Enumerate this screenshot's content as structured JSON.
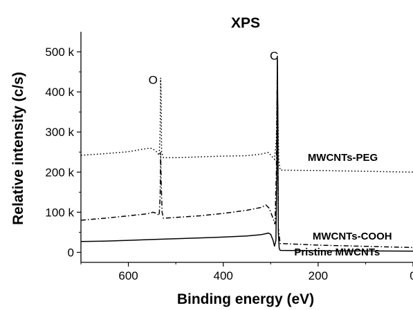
{
  "chart_data": {
    "type": "line",
    "title": "XPS",
    "xlabel": "Binding energy (eV)",
    "ylabel": "Relative intensity (c/s)",
    "xlim": [
      700,
      0
    ],
    "ylim": [
      -25000,
      550000
    ],
    "x_reversed": true,
    "x_ticks": [
      {
        "value": 600,
        "label": "600"
      },
      {
        "value": 400,
        "label": "400"
      },
      {
        "value": 200,
        "label": "200"
      },
      {
        "value": 0,
        "label": "0"
      }
    ],
    "y_ticks": [
      {
        "value": 0,
        "label": "0"
      },
      {
        "value": 100000,
        "label": "100 k"
      },
      {
        "value": 200000,
        "label": "200 k"
      },
      {
        "value": 300000,
        "label": "300 k"
      },
      {
        "value": 400000,
        "label": "400 k"
      },
      {
        "value": 500000,
        "label": "500 k"
      }
    ],
    "grid": false,
    "annotations": [
      {
        "text": "O",
        "x": 548,
        "y": 420000
      },
      {
        "text": "C",
        "x": 293,
        "y": 480000
      }
    ],
    "series": [
      {
        "name": "MWCNTs-PEG",
        "style": "dotted",
        "label_at": {
          "x": 148,
          "y": 228000
        },
        "points": [
          [
            700,
            242000
          ],
          [
            650,
            246000
          ],
          [
            600,
            251000
          ],
          [
            570,
            257000
          ],
          [
            555,
            260000
          ],
          [
            548,
            258000
          ],
          [
            540,
            250000
          ],
          [
            535,
            242000
          ],
          [
            533,
            300000
          ],
          [
            532,
            435000
          ],
          [
            531,
            390000
          ],
          [
            530,
            250000
          ],
          [
            526,
            236000
          ],
          [
            500,
            236000
          ],
          [
            450,
            238000
          ],
          [
            400,
            240000
          ],
          [
            350,
            241000
          ],
          [
            320,
            245000
          ],
          [
            305,
            249000
          ],
          [
            298,
            240000
          ],
          [
            292,
            232000
          ],
          [
            288,
            280000
          ],
          [
            286,
            430000
          ],
          [
            285,
            350000
          ],
          [
            283,
            230000
          ],
          [
            280,
            205000
          ],
          [
            200,
            204000
          ],
          [
            100,
            202000
          ],
          [
            0,
            200000
          ]
        ]
      },
      {
        "name": "MWCNTs-COOH",
        "style": "dashdot",
        "label_at": {
          "x": 128,
          "y": 32000
        },
        "points": [
          [
            700,
            80000
          ],
          [
            650,
            85000
          ],
          [
            600,
            91000
          ],
          [
            560,
            96000
          ],
          [
            548,
            100000
          ],
          [
            540,
            97000
          ],
          [
            535,
            92000
          ],
          [
            533,
            140000
          ],
          [
            532,
            250000
          ],
          [
            531,
            180000
          ],
          [
            529,
            100000
          ],
          [
            526,
            85000
          ],
          [
            500,
            87000
          ],
          [
            450,
            91000
          ],
          [
            400,
            97000
          ],
          [
            350,
            105000
          ],
          [
            320,
            112000
          ],
          [
            310,
            118000
          ],
          [
            303,
            110000
          ],
          [
            296,
            88000
          ],
          [
            291,
            70000
          ],
          [
            288,
            200000
          ],
          [
            286,
            480000
          ],
          [
            285,
            300000
          ],
          [
            284,
            60000
          ],
          [
            280,
            22000
          ],
          [
            200,
            18000
          ],
          [
            100,
            15000
          ],
          [
            0,
            12000
          ]
        ]
      },
      {
        "name": "Pristine MWCNTs",
        "style": "solid",
        "label_at": {
          "x": 160,
          "y": -8000
        },
        "points": [
          [
            700,
            27000
          ],
          [
            650,
            28000
          ],
          [
            600,
            30000
          ],
          [
            550,
            32000
          ],
          [
            500,
            34000
          ],
          [
            450,
            36000
          ],
          [
            400,
            38000
          ],
          [
            350,
            41000
          ],
          [
            320,
            44000
          ],
          [
            305,
            48000
          ],
          [
            300,
            45000
          ],
          [
            295,
            30000
          ],
          [
            292,
            15000
          ],
          [
            289,
            30000
          ],
          [
            287,
            200000
          ],
          [
            286,
            490000
          ],
          [
            285,
            350000
          ],
          [
            284,
            50000
          ],
          [
            282,
            10000
          ],
          [
            280,
            5000
          ],
          [
            200,
            4000
          ],
          [
            100,
            3500
          ],
          [
            0,
            3000
          ]
        ]
      }
    ]
  }
}
